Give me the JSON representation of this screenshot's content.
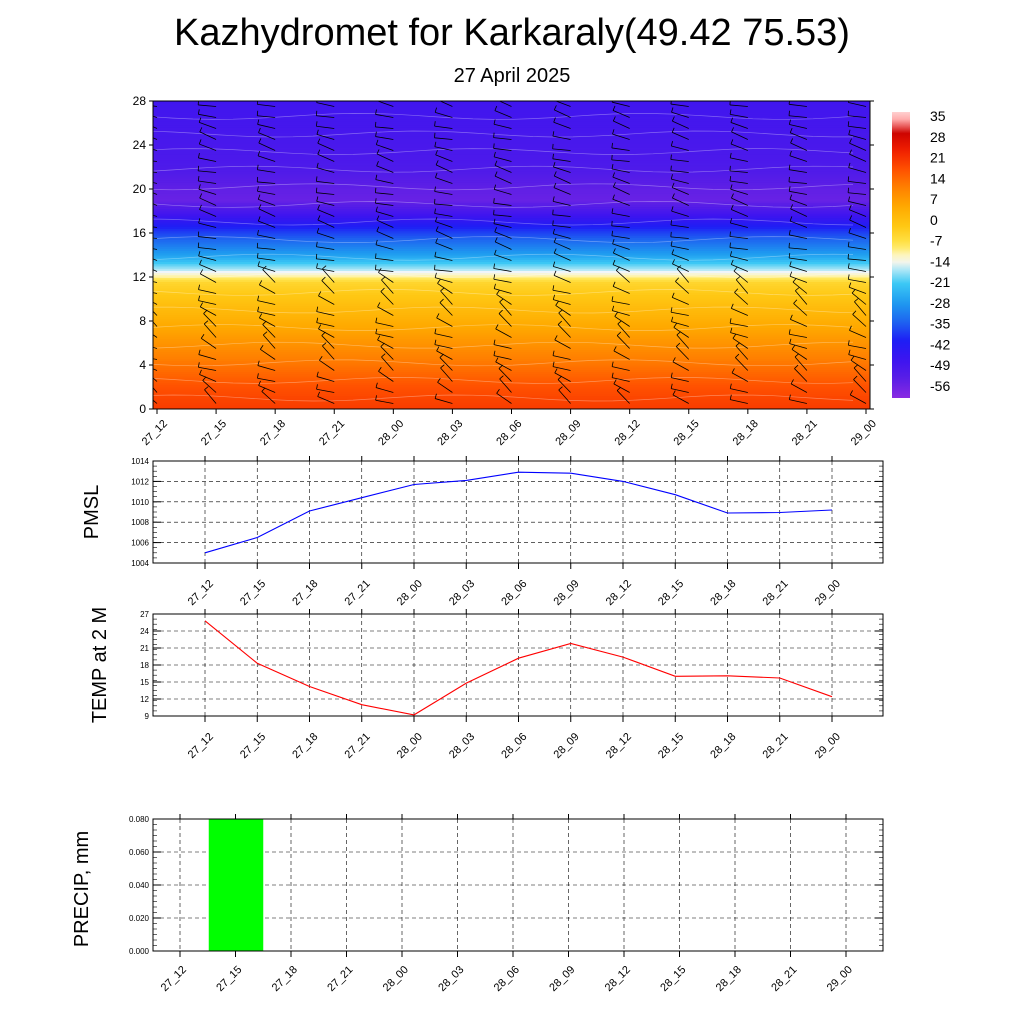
{
  "title": "Kazhydromet for Karkaraly(49.42 75.53)",
  "subtitle": "27 April 2025",
  "time_labels": [
    "27_12",
    "27_15",
    "27_18",
    "27_21",
    "28_00",
    "28_03",
    "28_06",
    "28_09",
    "28_12",
    "28_15",
    "28_18",
    "28_21",
    "29_00"
  ],
  "chart_data": [
    {
      "id": "cross-section",
      "type": "heatmap",
      "x": [
        "27_12",
        "27_15",
        "27_18",
        "27_21",
        "28_00",
        "28_03",
        "28_06",
        "28_09",
        "28_12",
        "28_15",
        "28_18",
        "28_21",
        "29_00"
      ],
      "ylim": [
        0,
        28
      ],
      "yticks": [
        0,
        4,
        8,
        12,
        16,
        20,
        24,
        28
      ],
      "colorbar_labels": [
        "35",
        "28",
        "21",
        "14",
        "7",
        "0",
        "-7",
        "-14",
        "-21",
        "-28",
        "-35",
        "-42",
        "-49",
        "-56"
      ],
      "colorbar_range": [
        -63,
        42
      ],
      "level_temperature_profile": {
        "levels": [
          0,
          2,
          4,
          6,
          8,
          10,
          11.5,
          12.5,
          14,
          16,
          18,
          19,
          20,
          22,
          24,
          26,
          28
        ],
        "values": [
          24,
          21,
          16,
          11,
          6,
          1,
          -3,
          -14,
          -27,
          -38,
          -52,
          -58,
          -57,
          -53,
          -52,
          -51,
          -50
        ]
      },
      "wind_barbs": true,
      "legend": "right"
    },
    {
      "id": "pmsl",
      "type": "line",
      "ylabel": "PMSL",
      "x": [
        "27_12",
        "27_15",
        "27_18",
        "27_21",
        "28_00",
        "28_03",
        "28_06",
        "28_09",
        "28_12",
        "28_15",
        "28_18",
        "28_21",
        "29_00"
      ],
      "values": [
        1005.0,
        1006.5,
        1009.1,
        1010.4,
        1011.7,
        1012.1,
        1012.9,
        1012.8,
        1012.0,
        1010.7,
        1008.9,
        1008.95,
        1009.2
      ],
      "ylim": [
        1004,
        1014
      ],
      "yticks": [
        1004,
        1006,
        1008,
        1010,
        1012,
        1014
      ],
      "color": "#0000ff",
      "grid": true
    },
    {
      "id": "temp2m",
      "type": "line",
      "ylabel": "TEMP at 2 M",
      "x": [
        "27_12",
        "27_15",
        "27_18",
        "27_21",
        "28_00",
        "28_03",
        "28_06",
        "28_09",
        "28_12",
        "28_15",
        "28_18",
        "28_21",
        "29_00"
      ],
      "values": [
        25.8,
        18.3,
        14.2,
        11.0,
        9.2,
        14.8,
        19.2,
        21.8,
        19.4,
        16.0,
        16.1,
        15.7,
        12.4
      ],
      "ylim": [
        9,
        27
      ],
      "yticks": [
        9,
        12,
        15,
        18,
        21,
        24,
        27
      ],
      "color": "#ff0000",
      "grid": true
    },
    {
      "id": "precip",
      "type": "bar",
      "ylabel": "PRECIP, mm",
      "x": [
        "27_12",
        "27_15",
        "27_18",
        "27_21",
        "28_00",
        "28_03",
        "28_06",
        "28_09",
        "28_12",
        "28_15",
        "28_18",
        "28_21",
        "29_00"
      ],
      "values": [
        0,
        0.08,
        0,
        0,
        0,
        0,
        0,
        0,
        0,
        0,
        0,
        0,
        0
      ],
      "ylim": [
        0,
        0.08
      ],
      "yticks": [
        "0.000",
        "0.020",
        "0.040",
        "0.060",
        "0.080"
      ],
      "color": "#00ff00",
      "grid": true
    }
  ]
}
